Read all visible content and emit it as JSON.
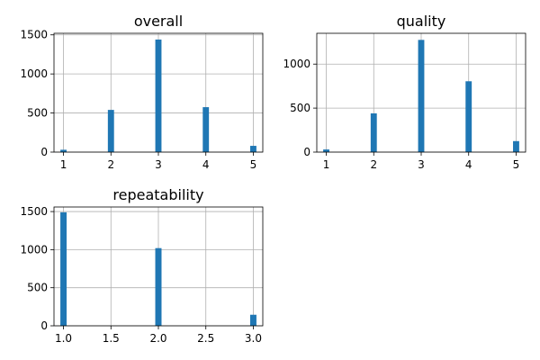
{
  "chart_data": [
    {
      "type": "bar",
      "title": "overall",
      "xlabel": "",
      "ylabel": "",
      "xlim": [
        0.8,
        5.2
      ],
      "ylim": [
        0,
        1520
      ],
      "x": [
        1,
        2,
        3,
        4,
        5
      ],
      "values": [
        30,
        540,
        1440,
        575,
        80
      ],
      "xticks": [
        1,
        2,
        3,
        4,
        5
      ],
      "xtick_labels": [
        "1",
        "2",
        "3",
        "4",
        "5"
      ],
      "yticks": [
        0,
        500,
        1000,
        1500
      ],
      "ytick_labels": [
        "0",
        "500",
        "1000",
        "1500"
      ],
      "grid": true,
      "color": "#1f77b4"
    },
    {
      "type": "bar",
      "title": "quality",
      "xlabel": "",
      "ylabel": "",
      "xlim": [
        0.8,
        5.2
      ],
      "ylim": [
        0,
        1350
      ],
      "x": [
        1,
        2,
        3,
        4,
        5
      ],
      "values": [
        30,
        440,
        1275,
        805,
        125
      ],
      "xticks": [
        1,
        2,
        3,
        4,
        5
      ],
      "xtick_labels": [
        "1",
        "2",
        "3",
        "4",
        "5"
      ],
      "yticks": [
        0,
        500,
        1000
      ],
      "ytick_labels": [
        "0",
        "500",
        "1000"
      ],
      "grid": true,
      "color": "#1f77b4"
    },
    {
      "type": "bar",
      "title": "repeatability",
      "xlabel": "",
      "ylabel": "",
      "xlim": [
        0.9,
        3.1
      ],
      "ylim": [
        0,
        1560
      ],
      "x": [
        1,
        2,
        3
      ],
      "values": [
        1490,
        1020,
        145
      ],
      "xticks": [
        1.0,
        1.5,
        2.0,
        2.5,
        3.0
      ],
      "xtick_labels": [
        "1.0",
        "1.5",
        "2.0",
        "2.5",
        "3.0"
      ],
      "yticks": [
        0,
        500,
        1000,
        1500
      ],
      "ytick_labels": [
        "0",
        "500",
        "1000",
        "1500"
      ],
      "grid": true,
      "color": "#1f77b4"
    }
  ]
}
